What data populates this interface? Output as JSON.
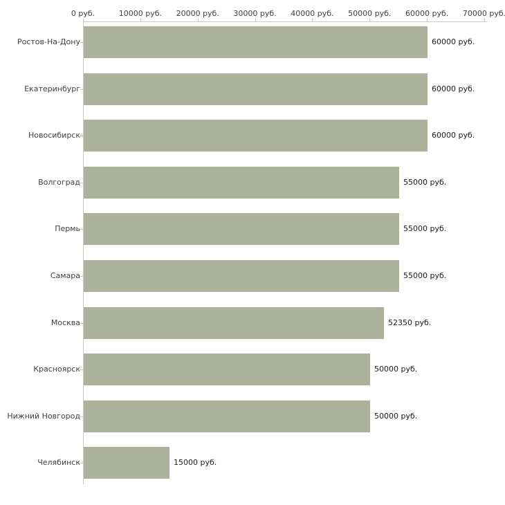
{
  "chart_data": {
    "type": "bar",
    "orientation": "horizontal",
    "title": "",
    "xlabel": "",
    "ylabel": "",
    "unit": "руб.",
    "categories": [
      "Ростов-На-Дону",
      "Екатеринбург",
      "Новосибирск",
      "Волгоград",
      "Пермь",
      "Самара",
      "Москва",
      "Красноярск",
      "Нижний Новгород",
      "Челябинск"
    ],
    "values": [
      60000,
      60000,
      60000,
      55000,
      55000,
      55000,
      52350,
      50000,
      50000,
      15000
    ],
    "value_labels": [
      "60000 руб.",
      "60000 руб.",
      "60000 руб.",
      "55000 руб.",
      "55000 руб.",
      "55000 руб.",
      "52350 руб.",
      "50000 руб.",
      "50000 руб.",
      "15000 руб."
    ],
    "x_tick_values": [
      0,
      10000,
      20000,
      30000,
      40000,
      50000,
      60000,
      70000
    ],
    "x_tick_labels": [
      "0 руб.",
      "10000 руб.",
      "20000 руб.",
      "30000 руб.",
      "40000 руб.",
      "50000 руб.",
      "60000 руб.",
      "70000 руб."
    ],
    "xlim": [
      0,
      70000
    ],
    "grid": false,
    "legend": "none",
    "bar_color": "#adb39b",
    "axis_color": "#c9c9c3",
    "tick_color": "#c2c6ab",
    "label_color": "#3f3f3f",
    "value_label_color": "#1a1a1a"
  }
}
